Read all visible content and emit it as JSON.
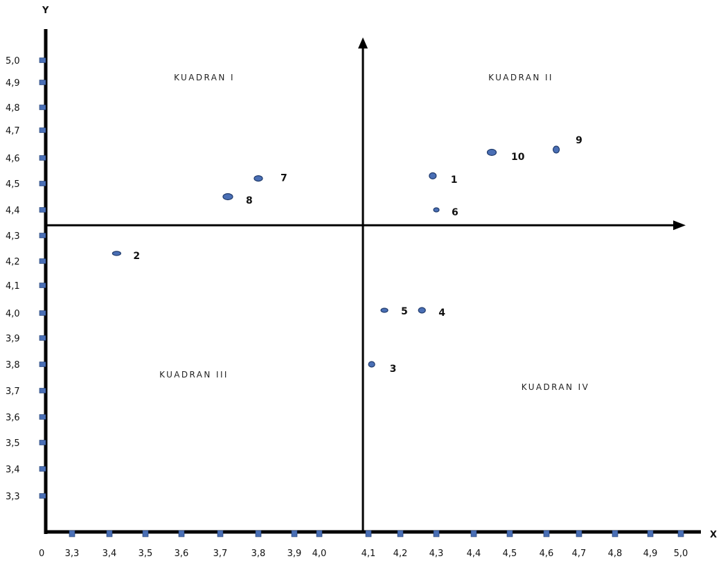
{
  "chart_data": {
    "type": "scatter",
    "x_axis_title": "X",
    "y_axis_title": "Y",
    "origin_label": "0",
    "x_ticks": [
      "3,3",
      "3,4",
      "3,5",
      "3,6",
      "3,7",
      "3,8",
      "3,9",
      "4,0",
      "4,1",
      "4,2",
      "4,3",
      "4,4",
      "4,5",
      "4,6",
      "4,7",
      "4,8",
      "4,9",
      "5,0"
    ],
    "y_ticks": [
      "3,3",
      "3,4",
      "3,5",
      "3,6",
      "3,7",
      "3,8",
      "3,9",
      "4,0",
      "4,1",
      "4,2",
      "4,3",
      "4,4",
      "4,5",
      "4,6",
      "4,7",
      "4,8",
      "4,9",
      "5,0"
    ],
    "quadrant_divider": {
      "x": 4.1,
      "y": 4.34
    },
    "quadrants": [
      {
        "label": "KUADRAN I",
        "position": "top-left"
      },
      {
        "label": "KUADRAN II",
        "position": "top-right"
      },
      {
        "label": "KUADRAN III",
        "position": "bottom-left"
      },
      {
        "label": "KUADRAN IV",
        "position": "bottom-right"
      }
    ],
    "points": [
      {
        "label": "1",
        "x": 4.29,
        "y": 4.53
      },
      {
        "label": "2",
        "x": 3.42,
        "y": 4.23
      },
      {
        "label": "3",
        "x": 4.11,
        "y": 3.8
      },
      {
        "label": "4",
        "x": 4.26,
        "y": 4.01
      },
      {
        "label": "5",
        "x": 4.15,
        "y": 4.01
      },
      {
        "label": "6",
        "x": 4.3,
        "y": 4.4
      },
      {
        "label": "7",
        "x": 3.8,
        "y": 4.52
      },
      {
        "label": "8",
        "x": 3.72,
        "y": 4.45
      },
      {
        "label": "9",
        "x": 4.63,
        "y": 4.63
      },
      {
        "label": "10",
        "x": 4.45,
        "y": 4.62
      }
    ],
    "marker_color": "#4a6fb5",
    "marker_edge_color": "#1f3a6b",
    "axis_color": "#000000",
    "tick_color": "#4a6fb5",
    "grid": false
  }
}
